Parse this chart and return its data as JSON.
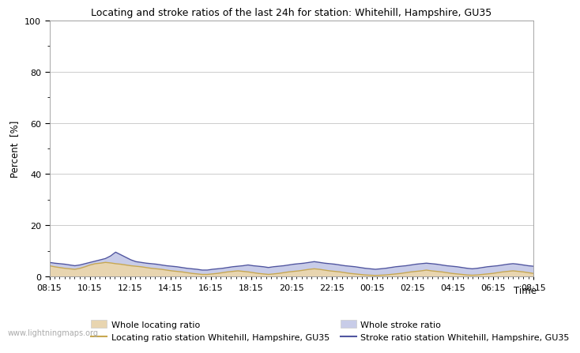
{
  "title": "Locating and stroke ratios of the last 24h for station: Whitehill, Hampshire, GU35",
  "xlabel": "Time",
  "ylabel": "Percent  [%]",
  "xlim": [
    0,
    96
  ],
  "ylim": [
    0,
    100
  ],
  "yticks": [
    0,
    20,
    40,
    60,
    80,
    100
  ],
  "ytick_minor": [
    10,
    30,
    50,
    70,
    90
  ],
  "xtick_labels": [
    "08:15",
    "10:15",
    "12:15",
    "14:15",
    "16:15",
    "18:15",
    "20:15",
    "22:15",
    "00:15",
    "02:15",
    "04:15",
    "06:15",
    "08:15"
  ],
  "watermark": "www.lightningmaps.org",
  "bg_color": "#ffffff",
  "plot_bg_color": "#ffffff",
  "grid_color": "#cccccc",
  "fill_locating_color": "#e8d5b0",
  "fill_stroke_color": "#c8cce8",
  "line_locating_color": "#c8a850",
  "line_stroke_color": "#5055a0",
  "legend_labels": [
    "Whole locating ratio",
    "Locating ratio station Whitehill, Hampshire, GU35",
    "Whole stroke ratio",
    "Stroke ratio station Whitehill, Hampshire, GU35"
  ],
  "locating_fill": [
    4.2,
    3.8,
    3.5,
    3.2,
    3.0,
    2.8,
    3.2,
    3.8,
    4.5,
    5.0,
    5.2,
    5.5,
    5.3,
    5.0,
    4.8,
    4.5,
    4.2,
    4.0,
    3.8,
    3.5,
    3.2,
    3.0,
    2.8,
    2.5,
    2.2,
    2.0,
    1.8,
    1.5,
    1.2,
    1.0,
    0.8,
    0.8,
    1.0,
    1.2,
    1.5,
    1.8,
    2.0,
    2.2,
    2.0,
    1.8,
    1.5,
    1.2,
    1.0,
    0.8,
    1.0,
    1.2,
    1.5,
    1.8,
    2.0,
    2.2,
    2.5,
    2.8,
    3.0,
    2.8,
    2.5,
    2.2,
    2.0,
    1.8,
    1.5,
    1.2,
    1.0,
    0.8,
    0.6,
    0.5,
    0.4,
    0.5,
    0.6,
    0.8,
    1.0,
    1.2,
    1.5,
    1.8,
    2.0,
    2.2,
    2.5,
    2.2,
    2.0,
    1.8,
    1.5,
    1.2,
    1.0,
    0.8,
    0.6,
    0.5,
    0.6,
    0.8,
    1.0,
    1.2,
    1.5,
    1.8,
    2.0,
    2.2,
    2.0,
    1.8,
    1.5,
    1.2
  ],
  "stroke_fill": [
    5.5,
    5.2,
    5.0,
    4.8,
    4.5,
    4.2,
    4.5,
    5.0,
    5.5,
    6.0,
    6.5,
    7.0,
    8.0,
    9.5,
    8.5,
    7.5,
    6.5,
    5.8,
    5.5,
    5.2,
    5.0,
    4.8,
    4.5,
    4.2,
    4.0,
    3.8,
    3.5,
    3.2,
    3.0,
    2.8,
    2.5,
    2.5,
    2.8,
    3.0,
    3.2,
    3.5,
    3.8,
    4.0,
    4.2,
    4.5,
    4.2,
    4.0,
    3.8,
    3.5,
    3.8,
    4.0,
    4.2,
    4.5,
    4.8,
    5.0,
    5.2,
    5.5,
    5.8,
    5.5,
    5.2,
    5.0,
    4.8,
    4.5,
    4.2,
    4.0,
    3.8,
    3.5,
    3.2,
    3.0,
    2.8,
    3.0,
    3.2,
    3.5,
    3.8,
    4.0,
    4.2,
    4.5,
    4.8,
    5.0,
    5.2,
    5.0,
    4.8,
    4.5,
    4.2,
    4.0,
    3.8,
    3.5,
    3.2,
    3.0,
    3.2,
    3.5,
    3.8,
    4.0,
    4.2,
    4.5,
    4.8,
    5.0,
    4.8,
    4.5,
    4.2,
    4.0
  ],
  "locating_line": [
    4.2,
    3.8,
    3.5,
    3.2,
    3.0,
    2.8,
    3.2,
    3.8,
    4.5,
    5.0,
    5.2,
    5.5,
    5.3,
    5.0,
    4.8,
    4.5,
    4.2,
    4.0,
    3.8,
    3.5,
    3.2,
    3.0,
    2.8,
    2.5,
    2.2,
    2.0,
    1.8,
    1.5,
    1.2,
    1.0,
    0.8,
    0.8,
    1.0,
    1.2,
    1.5,
    1.8,
    2.0,
    2.2,
    2.0,
    1.8,
    1.5,
    1.2,
    1.0,
    0.8,
    1.0,
    1.2,
    1.5,
    1.8,
    2.0,
    2.2,
    2.5,
    2.8,
    3.0,
    2.8,
    2.5,
    2.2,
    2.0,
    1.8,
    1.5,
    1.2,
    1.0,
    0.8,
    0.6,
    0.5,
    0.4,
    0.5,
    0.6,
    0.8,
    1.0,
    1.2,
    1.5,
    1.8,
    2.0,
    2.2,
    2.5,
    2.2,
    2.0,
    1.8,
    1.5,
    1.2,
    1.0,
    0.8,
    0.6,
    0.5,
    0.6,
    0.8,
    1.0,
    1.2,
    1.5,
    1.8,
    2.0,
    2.2,
    2.0,
    1.8,
    1.5,
    1.2
  ],
  "stroke_line": [
    5.5,
    5.2,
    5.0,
    4.8,
    4.5,
    4.2,
    4.5,
    5.0,
    5.5,
    6.0,
    6.5,
    7.0,
    8.0,
    9.5,
    8.5,
    7.5,
    6.5,
    5.8,
    5.5,
    5.2,
    5.0,
    4.8,
    4.5,
    4.2,
    4.0,
    3.8,
    3.5,
    3.2,
    3.0,
    2.8,
    2.5,
    2.5,
    2.8,
    3.0,
    3.2,
    3.5,
    3.8,
    4.0,
    4.2,
    4.5,
    4.2,
    4.0,
    3.8,
    3.5,
    3.8,
    4.0,
    4.2,
    4.5,
    4.8,
    5.0,
    5.2,
    5.5,
    5.8,
    5.5,
    5.2,
    5.0,
    4.8,
    4.5,
    4.2,
    4.0,
    3.8,
    3.5,
    3.2,
    3.0,
    2.8,
    3.0,
    3.2,
    3.5,
    3.8,
    4.0,
    4.2,
    4.5,
    4.8,
    5.0,
    5.2,
    5.0,
    4.8,
    4.5,
    4.2,
    4.0,
    3.8,
    3.5,
    3.2,
    3.0,
    3.2,
    3.5,
    3.8,
    4.0,
    4.2,
    4.5,
    4.8,
    5.0,
    4.8,
    4.5,
    4.2,
    4.0
  ]
}
